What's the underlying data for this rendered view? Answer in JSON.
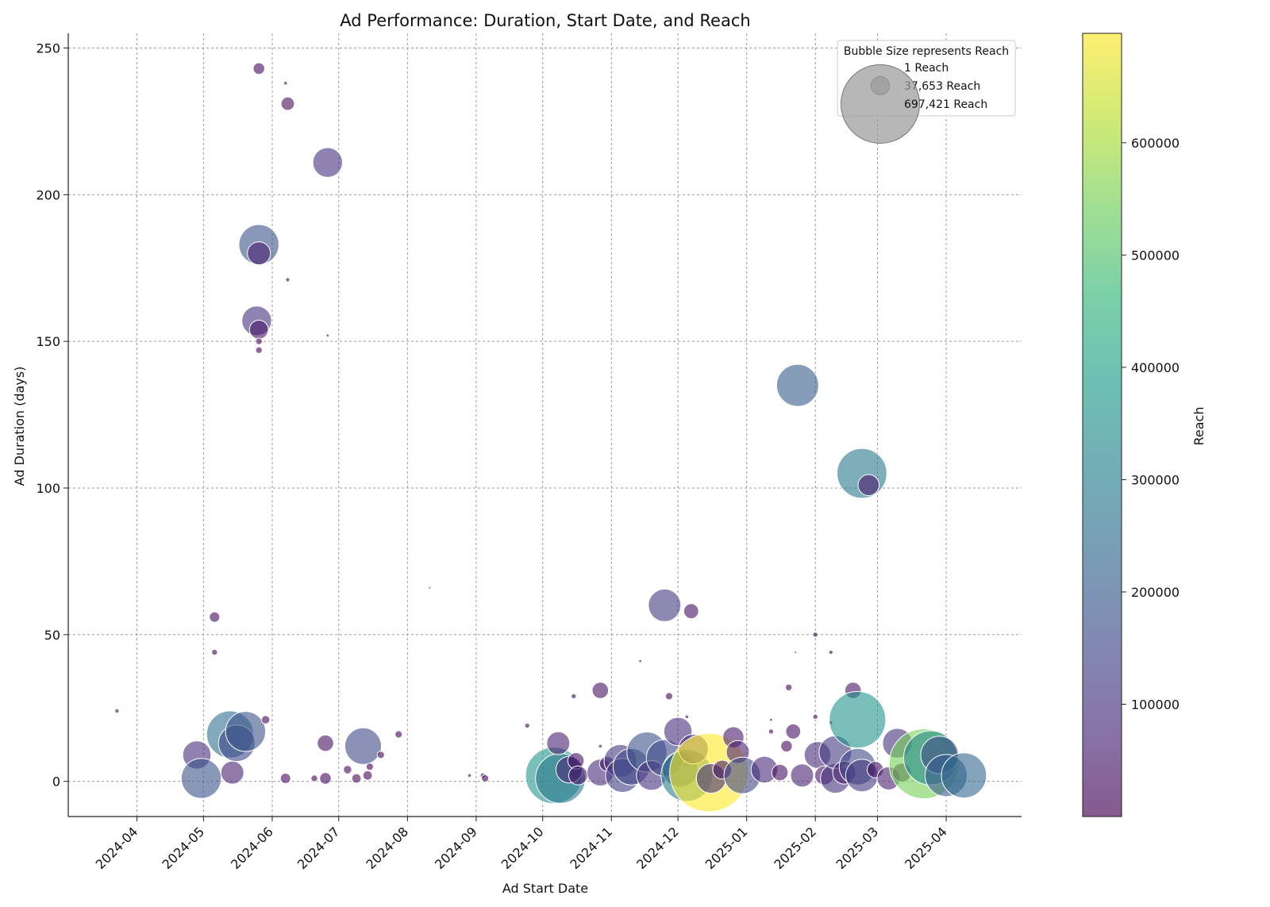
{
  "chart_data": {
    "type": "scatter",
    "title": "Ad Performance: Duration, Start Date, and Reach",
    "xlabel": "Ad Start Date",
    "ylabel": "Ad Duration (days)",
    "colorbar_label": "Reach",
    "x_domain": [
      "2024-03-01",
      "2025-05-05"
    ],
    "ylim": [
      -12,
      255
    ],
    "x_ticks": [
      "2024-04",
      "2024-05",
      "2024-06",
      "2024-07",
      "2024-08",
      "2024-09",
      "2024-10",
      "2024-11",
      "2024-12",
      "2025-01",
      "2025-02",
      "2025-03",
      "2025-04"
    ],
    "y_ticks": [
      0,
      50,
      100,
      150,
      200,
      250
    ],
    "colorbar_range": [
      1,
      697421
    ],
    "colorbar_ticks": [
      100000,
      200000,
      300000,
      400000,
      500000,
      600000
    ],
    "grid": true,
    "legend": {
      "title": "Bubble Size represents Reach",
      "placement": "top-right",
      "entries": [
        {
          "label": "1 Reach",
          "reach": 1
        },
        {
          "label": "37,653 Reach",
          "reach": 37653
        },
        {
          "label": "697,421 Reach",
          "reach": 697421
        }
      ]
    },
    "colormap": [
      "#440154",
      "#482878",
      "#3e4989",
      "#31688e",
      "#26828e",
      "#1f9e89",
      "#35b779",
      "#6ece58",
      "#b5de2b",
      "#fde725"
    ],
    "points": [
      {
        "date": "2024-03-23",
        "duration": 24,
        "reach": 2000
      },
      {
        "date": "2024-04-28",
        "duration": 9,
        "reach": 90000
      },
      {
        "date": "2024-04-30",
        "duration": 1,
        "reach": 180000
      },
      {
        "date": "2024-05-06",
        "duration": 56,
        "reach": 12000
      },
      {
        "date": "2024-05-06",
        "duration": 44,
        "reach": 4000
      },
      {
        "date": "2024-05-13",
        "duration": 16,
        "reach": 250000
      },
      {
        "date": "2024-05-14",
        "duration": 3,
        "reach": 60000
      },
      {
        "date": "2024-05-16",
        "duration": 13,
        "reach": 150000
      },
      {
        "date": "2024-05-20",
        "duration": 17,
        "reach": 180000
      },
      {
        "date": "2024-05-26",
        "duration": 243,
        "reach": 15000
      },
      {
        "date": "2024-05-26",
        "duration": 183,
        "reach": 180000
      },
      {
        "date": "2024-05-26",
        "duration": 180,
        "reach": 60000
      },
      {
        "date": "2024-05-25",
        "duration": 157,
        "reach": 100000
      },
      {
        "date": "2024-05-26",
        "duration": 154,
        "reach": 40000
      },
      {
        "date": "2024-05-26",
        "duration": 150,
        "reach": 5000
      },
      {
        "date": "2024-05-26",
        "duration": 147,
        "reach": 5000
      },
      {
        "date": "2024-05-29",
        "duration": 21,
        "reach": 8000
      },
      {
        "date": "2024-06-07",
        "duration": 238,
        "reach": 1500
      },
      {
        "date": "2024-06-08",
        "duration": 231,
        "reach": 20000
      },
      {
        "date": "2024-06-08",
        "duration": 171,
        "reach": 2000
      },
      {
        "date": "2024-06-07",
        "duration": 1,
        "reach": 12000
      },
      {
        "date": "2024-06-20",
        "duration": 1,
        "reach": 5000
      },
      {
        "date": "2024-06-26",
        "duration": 211,
        "reach": 100000
      },
      {
        "date": "2024-06-26",
        "duration": 152,
        "reach": 1000
      },
      {
        "date": "2024-06-25",
        "duration": 13,
        "reach": 30000
      },
      {
        "date": "2024-06-25",
        "duration": 1,
        "reach": 15000
      },
      {
        "date": "2024-07-05",
        "duration": 4,
        "reach": 8000
      },
      {
        "date": "2024-07-09",
        "duration": 1,
        "reach": 10000
      },
      {
        "date": "2024-07-12",
        "duration": 12,
        "reach": 150000
      },
      {
        "date": "2024-07-14",
        "duration": 2,
        "reach": 10000
      },
      {
        "date": "2024-07-15",
        "duration": 5,
        "reach": 6000
      },
      {
        "date": "2024-07-20",
        "duration": 9,
        "reach": 6000
      },
      {
        "date": "2024-07-28",
        "duration": 16,
        "reach": 6000
      },
      {
        "date": "2024-08-11",
        "duration": 66,
        "reach": 400
      },
      {
        "date": "2024-08-29",
        "duration": 2,
        "reach": 1500
      },
      {
        "date": "2024-09-04",
        "duration": 2,
        "reach": 3000
      },
      {
        "date": "2024-09-05",
        "duration": 1,
        "reach": 6000
      },
      {
        "date": "2024-09-24",
        "duration": 19,
        "reach": 3000
      },
      {
        "date": "2024-10-06",
        "duration": 2,
        "reach": 360000
      },
      {
        "date": "2024-10-09",
        "duration": 1,
        "reach": 280000
      },
      {
        "date": "2024-10-08",
        "duration": 13,
        "reach": 60000
      },
      {
        "date": "2024-10-13",
        "duration": 4,
        "reach": 80000
      },
      {
        "date": "2024-10-15",
        "duration": 29,
        "reach": 3000
      },
      {
        "date": "2024-10-16",
        "duration": 7,
        "reach": 30000
      },
      {
        "date": "2024-10-17",
        "duration": 2,
        "reach": 40000
      },
      {
        "date": "2024-10-27",
        "duration": 31,
        "reach": 30000
      },
      {
        "date": "2024-10-27",
        "duration": 12,
        "reach": 1500
      },
      {
        "date": "2024-10-27",
        "duration": 3,
        "reach": 80000
      },
      {
        "date": "2024-10-30",
        "duration": 6,
        "reach": 25000
      },
      {
        "date": "2024-11-05",
        "duration": 7,
        "reach": 120000
      },
      {
        "date": "2024-11-06",
        "duration": 2,
        "reach": 130000
      },
      {
        "date": "2024-11-10",
        "duration": 5,
        "reach": 150000
      },
      {
        "date": "2024-11-14",
        "duration": 41,
        "reach": 1000
      },
      {
        "date": "2024-11-17",
        "duration": 10,
        "reach": 180000
      },
      {
        "date": "2024-11-19",
        "duration": 2,
        "reach": 100000
      },
      {
        "date": "2024-11-25",
        "duration": 60,
        "reach": 120000
      },
      {
        "date": "2024-11-25",
        "duration": 8,
        "reach": 150000
      },
      {
        "date": "2024-11-27",
        "duration": 29,
        "reach": 6000
      },
      {
        "date": "2024-12-01",
        "duration": 17,
        "reach": 90000
      },
      {
        "date": "2024-12-02",
        "duration": 4,
        "reach": 140000
      },
      {
        "date": "2024-12-05",
        "duration": 2,
        "reach": 300000
      },
      {
        "date": "2024-12-05",
        "duration": 22,
        "reach": 1500
      },
      {
        "date": "2024-12-07",
        "duration": 58,
        "reach": 25000
      },
      {
        "date": "2024-12-08",
        "duration": 11,
        "reach": 100000
      },
      {
        "date": "2024-12-15",
        "duration": 3,
        "reach": 697421
      },
      {
        "date": "2024-12-16",
        "duration": 1,
        "reach": 100000
      },
      {
        "date": "2024-12-21",
        "duration": 4,
        "reach": 40000
      },
      {
        "date": "2024-12-26",
        "duration": 15,
        "reach": 50000
      },
      {
        "date": "2024-12-28",
        "duration": 10,
        "reach": 60000
      },
      {
        "date": "2024-12-30",
        "duration": 2,
        "reach": 150000
      },
      {
        "date": "2025-01-09",
        "duration": 4,
        "reach": 80000
      },
      {
        "date": "2025-01-12",
        "duration": 17,
        "reach": 3000
      },
      {
        "date": "2025-01-12",
        "duration": 21,
        "reach": 1000
      },
      {
        "date": "2025-01-16",
        "duration": 3,
        "reach": 30000
      },
      {
        "date": "2025-01-19",
        "duration": 12,
        "reach": 15000
      },
      {
        "date": "2025-01-20",
        "duration": 32,
        "reach": 5000
      },
      {
        "date": "2025-01-22",
        "duration": 17,
        "reach": 25000
      },
      {
        "date": "2025-01-23",
        "duration": 44,
        "reach": 300
      },
      {
        "date": "2025-01-24",
        "duration": 135,
        "reach": 200000
      },
      {
        "date": "2025-01-26",
        "duration": 2,
        "reach": 60000
      },
      {
        "date": "2025-02-01",
        "duration": 50,
        "reach": 3000
      },
      {
        "date": "2025-02-01",
        "duration": 22,
        "reach": 3000
      },
      {
        "date": "2025-02-02",
        "duration": 9,
        "reach": 80000
      },
      {
        "date": "2025-02-05",
        "duration": 2,
        "reach": 40000
      },
      {
        "date": "2025-02-08",
        "duration": 44,
        "reach": 2000
      },
      {
        "date": "2025-02-08",
        "duration": 20,
        "reach": 1500
      },
      {
        "date": "2025-02-10",
        "duration": 1,
        "reach": 100000
      },
      {
        "date": "2025-02-10",
        "duration": 10,
        "reach": 120000
      },
      {
        "date": "2025-02-14",
        "duration": 3,
        "reach": 60000
      },
      {
        "date": "2025-02-18",
        "duration": 31,
        "reach": 30000
      },
      {
        "date": "2025-02-20",
        "duration": 21,
        "reach": 360000
      },
      {
        "date": "2025-02-20",
        "duration": 5,
        "reach": 150000
      },
      {
        "date": "2025-02-22",
        "duration": 105,
        "reach": 280000
      },
      {
        "date": "2025-02-22",
        "duration": 2,
        "reach": 120000
      },
      {
        "date": "2025-02-25",
        "duration": 101,
        "reach": 50000
      },
      {
        "date": "2025-02-28",
        "duration": 4,
        "reach": 30000
      },
      {
        "date": "2025-03-06",
        "duration": 1,
        "reach": 60000
      },
      {
        "date": "2025-03-10",
        "duration": 13,
        "reach": 100000
      },
      {
        "date": "2025-03-12",
        "duration": 3,
        "reach": 40000
      },
      {
        "date": "2025-03-22",
        "duration": 6,
        "reach": 550000
      },
      {
        "date": "2025-03-25",
        "duration": 8,
        "reach": 330000
      },
      {
        "date": "2025-03-29",
        "duration": 9,
        "reach": 160000
      },
      {
        "date": "2025-04-01",
        "duration": 2,
        "reach": 200000
      },
      {
        "date": "2025-04-09",
        "duration": 2,
        "reach": 230000
      }
    ]
  }
}
